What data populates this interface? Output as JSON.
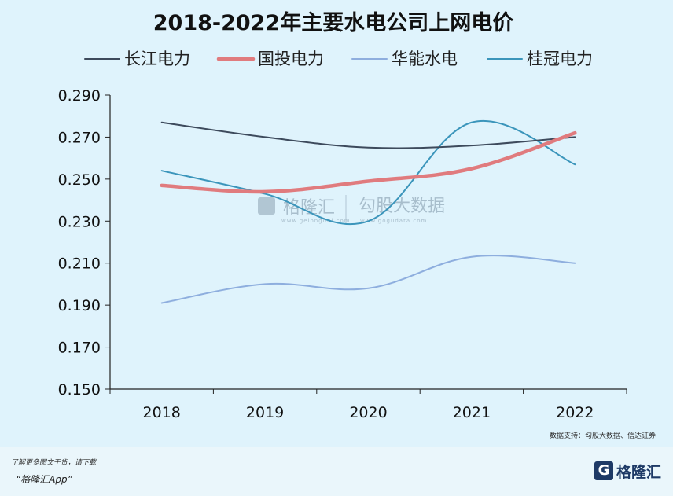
{
  "chart_data": {
    "type": "line",
    "title": "2018-2022年主要水电公司上网电价",
    "categories": [
      "2018",
      "2019",
      "2020",
      "2021",
      "2022"
    ],
    "y_ticks": [
      "0.150",
      "0.170",
      "0.190",
      "0.210",
      "0.230",
      "0.250",
      "0.270",
      "0.290"
    ],
    "ylim": [
      0.15,
      0.29
    ],
    "legend_position": "top",
    "grid": false,
    "series": [
      {
        "name": "长江电力",
        "color": "#3d4a5c",
        "width": 2,
        "values": [
          0.277,
          0.27,
          0.265,
          0.266,
          0.27
        ]
      },
      {
        "name": "国投电力",
        "color": "#e07b7e",
        "width": 4.5,
        "values": [
          0.247,
          0.244,
          0.249,
          0.255,
          0.272
        ]
      },
      {
        "name": "华能水电",
        "color": "#8eaede",
        "width": 2,
        "values": [
          0.191,
          0.2,
          0.198,
          0.213,
          0.21
        ]
      },
      {
        "name": "桂冠电力",
        "color": "#3b95bb",
        "width": 2,
        "values": [
          0.254,
          0.243,
          0.23,
          0.277,
          0.257
        ]
      }
    ],
    "source": "数据支持：勾股大数据、信达证券"
  },
  "watermark": {
    "brand": "格隆汇",
    "brand_sub": "www.gelonghui.com",
    "data_brand": "勾股大数据",
    "data_sub": "www.gogudata.com"
  },
  "footer": {
    "promo_line1": "了解更多图文干货，请下载",
    "promo_line2": "“格隆汇App”",
    "logo_mark": "G",
    "logo_text": "格隆汇"
  },
  "colors": {
    "background": "#dff3fc",
    "axis": "#222222"
  }
}
